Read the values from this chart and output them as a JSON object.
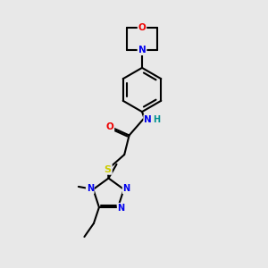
{
  "bg_color": "#e8e8e8",
  "atom_colors": {
    "C": "#000000",
    "N": "#0000ee",
    "O": "#ee0000",
    "S": "#cccc00",
    "H": "#009090"
  },
  "bond_color": "#000000",
  "bond_width": 1.5,
  "figsize": [
    3.0,
    3.0
  ],
  "dpi": 100
}
